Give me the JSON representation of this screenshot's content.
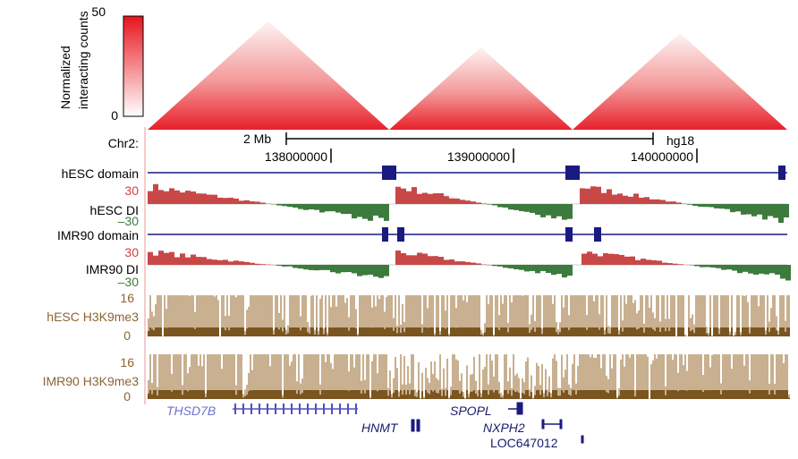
{
  "colorbar": {
    "label_line1": "Normalized",
    "label_line2": "interacting counts",
    "max": 50,
    "min": 0
  },
  "ruler": {
    "chrom": "Chr2:",
    "scale": "2 Mb",
    "assembly": "hg18",
    "positions": [
      "138000000",
      "139000000",
      "140000000"
    ]
  },
  "tracks": {
    "hesc_domain": "hESC domain",
    "hesc_di": "hESC DI",
    "hesc_di_max": 30,
    "hesc_di_min": "–30",
    "imr90_domain": "IMR90 domain",
    "imr90_di": "IMR90 DI",
    "imr90_di_max": 30,
    "imr90_di_min": "–30",
    "hesc_k9": "hESC H3K9me3",
    "hesc_k9_max": 16,
    "hesc_k9_min": 0,
    "imr90_k9": "IMR90 H3K9me3",
    "imr90_k9_max": 16,
    "imr90_k9_min": 0
  },
  "genes": [
    "THSD7B",
    "HNMT",
    "SPOPL",
    "NXPH2",
    "LOC647012"
  ]
}
